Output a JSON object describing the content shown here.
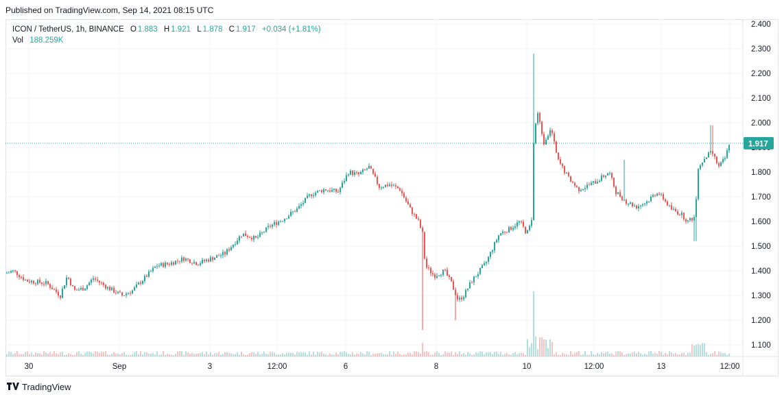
{
  "header": {
    "published": "Published on TradingView.com, Sep 14, 2021 08:15 UTC"
  },
  "legend": {
    "symbol": "ICON / TetherUS, 1h, BINANCE",
    "o_label": "O",
    "o": "1.883",
    "h_label": "H",
    "h": "1.921",
    "l_label": "L",
    "l": "1.878",
    "c_label": "C",
    "c": "1.917",
    "change": "+0.034 (+1.81%)",
    "vol_label": "Vol",
    "vol": "188.259K"
  },
  "price_tag": "1.917",
  "footer": {
    "brand": "TradingView",
    "logo_icon": "tradingview-logo-icon"
  },
  "colors": {
    "up": "#26a69a",
    "down": "#ef5350",
    "grid": "#f0f3fa",
    "price_line": "#26a69a"
  },
  "chart_data": {
    "type": "candlestick",
    "title": "ICON / TetherUS, 1h, BINANCE",
    "xlabel": "",
    "ylabel": "",
    "ylim": [
      1.07,
      2.41
    ],
    "y_ticks": [
      "2.400",
      "2.300",
      "2.200",
      "2.100",
      "2.000",
      "1.900",
      "1.800",
      "1.700",
      "1.600",
      "1.500",
      "1.400",
      "1.300",
      "1.200",
      "1.100"
    ],
    "x_ticks": [
      "30",
      "Sep",
      "3",
      "12:00",
      "6",
      "8",
      "10",
      "12:00",
      "13",
      "12:00"
    ],
    "grid": true,
    "last_price": 1.917,
    "series": [
      {
        "name": "price",
        "anchors": [
          [
            0,
            1.39
          ],
          [
            12,
            1.4
          ],
          [
            30,
            1.36
          ],
          [
            60,
            1.35
          ],
          [
            80,
            1.3
          ],
          [
            90,
            1.38
          ],
          [
            100,
            1.32
          ],
          [
            115,
            1.33
          ],
          [
            128,
            1.37
          ],
          [
            150,
            1.33
          ],
          [
            170,
            1.3
          ],
          [
            185,
            1.32
          ],
          [
            220,
            1.42
          ],
          [
            240,
            1.43
          ],
          [
            260,
            1.45
          ],
          [
            280,
            1.43
          ],
          [
            300,
            1.45
          ],
          [
            320,
            1.47
          ],
          [
            345,
            1.55
          ],
          [
            365,
            1.53
          ],
          [
            385,
            1.58
          ],
          [
            405,
            1.61
          ],
          [
            425,
            1.65
          ],
          [
            445,
            1.71
          ],
          [
            465,
            1.73
          ],
          [
            485,
            1.72
          ],
          [
            500,
            1.8
          ],
          [
            515,
            1.79
          ],
          [
            530,
            1.82
          ],
          [
            545,
            1.74
          ],
          [
            560,
            1.75
          ],
          [
            575,
            1.73
          ],
          [
            590,
            1.65
          ],
          [
            602,
            1.6
          ],
          [
            608,
            1.55
          ],
          [
            612,
            1.42
          ],
          [
            625,
            1.38
          ],
          [
            640,
            1.4
          ],
          [
            650,
            1.35
          ],
          [
            660,
            1.28
          ],
          [
            668,
            1.3
          ],
          [
            680,
            1.36
          ],
          [
            700,
            1.43
          ],
          [
            720,
            1.55
          ],
          [
            735,
            1.57
          ],
          [
            750,
            1.6
          ],
          [
            760,
            1.55
          ],
          [
            767,
            1.6
          ],
          [
            770,
            1.92
          ],
          [
            775,
            2.05
          ],
          [
            785,
            1.92
          ],
          [
            795,
            1.98
          ],
          [
            805,
            1.85
          ],
          [
            820,
            1.78
          ],
          [
            835,
            1.73
          ],
          [
            845,
            1.74
          ],
          [
            860,
            1.76
          ],
          [
            880,
            1.8
          ],
          [
            890,
            1.72
          ],
          [
            905,
            1.68
          ],
          [
            920,
            1.66
          ],
          [
            935,
            1.68
          ],
          [
            950,
            1.72
          ],
          [
            960,
            1.69
          ],
          [
            970,
            1.65
          ],
          [
            985,
            1.63
          ],
          [
            995,
            1.6
          ],
          [
            1005,
            1.62
          ],
          [
            1010,
            1.82
          ],
          [
            1020,
            1.86
          ],
          [
            1030,
            1.88
          ],
          [
            1040,
            1.82
          ],
          [
            1050,
            1.86
          ],
          [
            1055,
            1.917
          ]
        ]
      },
      {
        "name": "Vol",
        "note": "volume histogram, peak near Sep 10"
      }
    ]
  }
}
